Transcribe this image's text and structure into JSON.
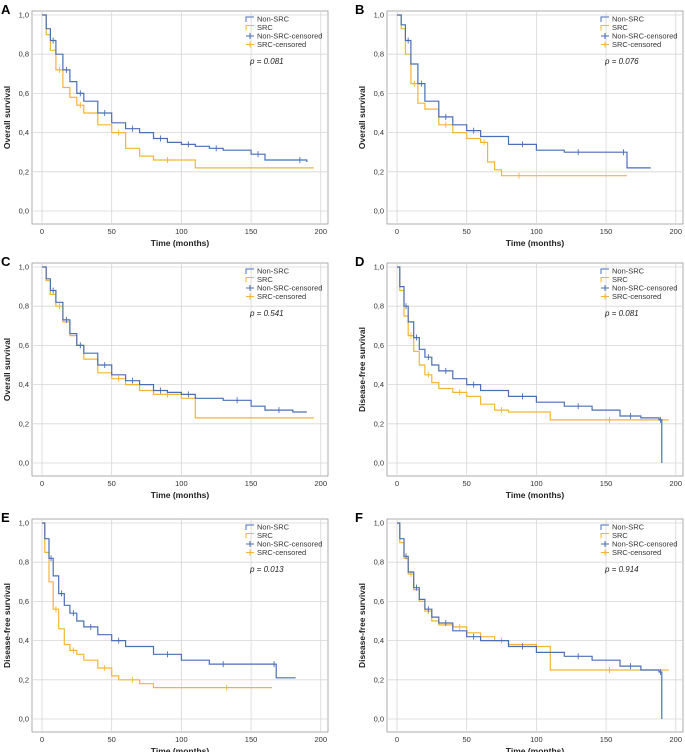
{
  "colors": {
    "non_src": "#4a6fb5",
    "src": "#f2b632"
  },
  "chart_data": [
    {
      "panel": "A",
      "type": "line",
      "ylabel": "Overall survival",
      "xlabel": "Time (months)",
      "xlim": [
        0,
        200
      ],
      "ylim": [
        0,
        1
      ],
      "xticks": [
        "0",
        "50",
        "100",
        "150",
        "200"
      ],
      "yticks": [
        "0,0",
        "0,2",
        "0,4",
        "0,6",
        "0,8",
        "1,0"
      ],
      "legend": [
        "Non-SRC",
        "SRC",
        "Non-SRC-censored",
        "SRC-censored"
      ],
      "p_value": "p = 0.081",
      "series": [
        {
          "name": "Non-SRC",
          "x": [
            0,
            3,
            6,
            10,
            15,
            20,
            25,
            30,
            40,
            50,
            60,
            70,
            80,
            90,
            100,
            110,
            120,
            130,
            150,
            160,
            180,
            190
          ],
          "y": [
            1.0,
            0.93,
            0.87,
            0.8,
            0.72,
            0.66,
            0.6,
            0.56,
            0.5,
            0.45,
            0.42,
            0.4,
            0.37,
            0.35,
            0.34,
            0.33,
            0.32,
            0.31,
            0.29,
            0.26,
            0.26,
            0.25
          ]
        },
        {
          "name": "SRC",
          "x": [
            0,
            3,
            6,
            10,
            15,
            20,
            25,
            30,
            40,
            50,
            60,
            70,
            80,
            100,
            110,
            195
          ],
          "y": [
            1.0,
            0.9,
            0.82,
            0.72,
            0.63,
            0.58,
            0.54,
            0.5,
            0.44,
            0.4,
            0.32,
            0.28,
            0.26,
            0.26,
            0.22,
            0.22
          ]
        }
      ]
    },
    {
      "panel": "B",
      "type": "line",
      "ylabel": "Overall survival",
      "xlabel": "Time (months)",
      "xlim": [
        0,
        200
      ],
      "ylim": [
        0,
        1
      ],
      "xticks": [
        "0",
        "50",
        "100",
        "150",
        "200"
      ],
      "yticks": [
        "0,0",
        "0,2",
        "0,4",
        "0,6",
        "0,8",
        "1,0"
      ],
      "legend": [
        "Non-SRC",
        "SRC",
        "Non-SRC-censored",
        "SRC-censored"
      ],
      "p_value": "p = 0.076",
      "series": [
        {
          "name": "Non-SRC",
          "x": [
            0,
            3,
            6,
            10,
            15,
            20,
            30,
            40,
            50,
            60,
            80,
            100,
            120,
            140,
            160,
            165,
            182
          ],
          "y": [
            1.0,
            0.95,
            0.87,
            0.75,
            0.65,
            0.56,
            0.48,
            0.44,
            0.41,
            0.38,
            0.34,
            0.31,
            0.3,
            0.3,
            0.3,
            0.22,
            0.22
          ]
        },
        {
          "name": "SRC",
          "x": [
            0,
            3,
            6,
            10,
            15,
            20,
            30,
            40,
            50,
            60,
            65,
            70,
            75,
            100,
            140,
            165
          ],
          "y": [
            1.0,
            0.93,
            0.8,
            0.65,
            0.55,
            0.52,
            0.44,
            0.4,
            0.37,
            0.35,
            0.25,
            0.21,
            0.18,
            0.18,
            0.18,
            0.18
          ]
        }
      ]
    },
    {
      "panel": "C",
      "type": "line",
      "ylabel": "Overall survival",
      "xlabel": "Time (months)",
      "xlim": [
        0,
        200
      ],
      "ylim": [
        0,
        1
      ],
      "xticks": [
        "0",
        "50",
        "100",
        "150",
        "200"
      ],
      "yticks": [
        "0,0",
        "0,2",
        "0,4",
        "0,6",
        "0,8",
        "1,0"
      ],
      "legend": [
        "Non-SRC",
        "SRC",
        "Non-SRC-censored",
        "SRC-censored"
      ],
      "p_value": "p = 0.541",
      "series": [
        {
          "name": "Non-SRC",
          "x": [
            0,
            3,
            6,
            10,
            15,
            20,
            25,
            30,
            40,
            50,
            60,
            70,
            80,
            90,
            100,
            110,
            130,
            150,
            160,
            180,
            190
          ],
          "y": [
            1.0,
            0.94,
            0.88,
            0.82,
            0.73,
            0.66,
            0.6,
            0.56,
            0.5,
            0.45,
            0.42,
            0.4,
            0.37,
            0.36,
            0.35,
            0.33,
            0.32,
            0.29,
            0.27,
            0.26,
            0.26
          ]
        },
        {
          "name": "SRC",
          "x": [
            0,
            3,
            6,
            10,
            15,
            20,
            25,
            30,
            40,
            50,
            60,
            70,
            80,
            100,
            110,
            195
          ],
          "y": [
            1.0,
            0.93,
            0.86,
            0.8,
            0.72,
            0.65,
            0.6,
            0.53,
            0.46,
            0.43,
            0.4,
            0.37,
            0.35,
            0.33,
            0.23,
            0.23
          ]
        }
      ]
    },
    {
      "panel": "D",
      "type": "line",
      "ylabel": "Disease-free survival",
      "xlabel": "Time (months)",
      "xlim": [
        0,
        200
      ],
      "ylim": [
        0,
        1
      ],
      "xticks": [
        "0",
        "50",
        "100",
        "150",
        "200"
      ],
      "yticks": [
        "0,0",
        "0,2",
        "0,4",
        "0,6",
        "0,8",
        "1,0"
      ],
      "legend": [
        "Non-SRC",
        "SRC",
        "Non-SRC-censored",
        "SRC-censored"
      ],
      "p_value": "p = 0.081",
      "series": [
        {
          "name": "Non-SRC",
          "x": [
            0,
            2,
            5,
            8,
            12,
            16,
            20,
            25,
            30,
            40,
            50,
            60,
            80,
            100,
            120,
            140,
            160,
            175,
            188,
            190,
            190
          ],
          "y": [
            1.0,
            0.9,
            0.8,
            0.72,
            0.64,
            0.58,
            0.54,
            0.5,
            0.47,
            0.43,
            0.4,
            0.37,
            0.34,
            0.31,
            0.29,
            0.27,
            0.24,
            0.23,
            0.22,
            0.22,
            0.0
          ]
        },
        {
          "name": "SRC",
          "x": [
            0,
            2,
            5,
            8,
            12,
            16,
            20,
            25,
            30,
            40,
            50,
            60,
            70,
            80,
            100,
            110,
            195
          ],
          "y": [
            1.0,
            0.88,
            0.75,
            0.65,
            0.57,
            0.5,
            0.45,
            0.41,
            0.38,
            0.36,
            0.34,
            0.3,
            0.27,
            0.26,
            0.26,
            0.22,
            0.22
          ]
        }
      ]
    },
    {
      "panel": "E",
      "type": "line",
      "ylabel": "Disease-free survival",
      "xlabel": "Time (months)",
      "xlim": [
        0,
        200
      ],
      "ylim": [
        0,
        1
      ],
      "xticks": [
        "0",
        "50",
        "100",
        "150",
        "200"
      ],
      "yticks": [
        "0,0",
        "0,2",
        "0,4",
        "0,6",
        "0,8",
        "1,0"
      ],
      "legend": [
        "Non-SRC",
        "SRC",
        "Non-SRC-censored",
        "SRC-censored"
      ],
      "p_value": "p = 0.013",
      "series": [
        {
          "name": "Non-SRC",
          "x": [
            0,
            2,
            5,
            8,
            12,
            16,
            20,
            25,
            30,
            40,
            50,
            60,
            80,
            100,
            120,
            140,
            165,
            168,
            182
          ],
          "y": [
            1.0,
            0.92,
            0.82,
            0.73,
            0.64,
            0.58,
            0.54,
            0.5,
            0.47,
            0.43,
            0.4,
            0.37,
            0.33,
            0.3,
            0.28,
            0.28,
            0.28,
            0.21,
            0.21
          ]
        },
        {
          "name": "SRC",
          "x": [
            0,
            2,
            5,
            8,
            12,
            16,
            20,
            25,
            30,
            40,
            50,
            55,
            60,
            70,
            80,
            100,
            165
          ],
          "y": [
            1.0,
            0.85,
            0.7,
            0.56,
            0.46,
            0.38,
            0.35,
            0.33,
            0.3,
            0.26,
            0.22,
            0.2,
            0.2,
            0.18,
            0.16,
            0.16,
            0.16
          ]
        }
      ]
    },
    {
      "panel": "F",
      "type": "line",
      "ylabel": "Disease-free survival",
      "xlabel": "Time (months)",
      "xlim": [
        0,
        200
      ],
      "ylim": [
        0,
        1
      ],
      "xticks": [
        "0",
        "50",
        "100",
        "150",
        "200"
      ],
      "yticks": [
        "0,0",
        "0,2",
        "0,4",
        "0,6",
        "0,8",
        "1,0"
      ],
      "legend": [
        "Non-SRC",
        "SRC",
        "Non-SRC-censored",
        "SRC-censored"
      ],
      "p_value": "p = 0.914",
      "series": [
        {
          "name": "Non-SRC",
          "x": [
            0,
            2,
            5,
            8,
            12,
            16,
            20,
            25,
            30,
            40,
            50,
            60,
            80,
            100,
            120,
            140,
            160,
            175,
            188,
            190,
            190
          ],
          "y": [
            1.0,
            0.92,
            0.83,
            0.75,
            0.67,
            0.61,
            0.56,
            0.52,
            0.49,
            0.45,
            0.42,
            0.4,
            0.37,
            0.34,
            0.32,
            0.3,
            0.27,
            0.25,
            0.24,
            0.24,
            0.0
          ]
        },
        {
          "name": "SRC",
          "x": [
            0,
            2,
            5,
            8,
            12,
            16,
            20,
            25,
            30,
            40,
            50,
            60,
            70,
            80,
            100,
            110,
            195
          ],
          "y": [
            1.0,
            0.9,
            0.82,
            0.74,
            0.66,
            0.6,
            0.55,
            0.5,
            0.48,
            0.47,
            0.44,
            0.42,
            0.4,
            0.38,
            0.37,
            0.25,
            0.25
          ]
        }
      ]
    }
  ]
}
